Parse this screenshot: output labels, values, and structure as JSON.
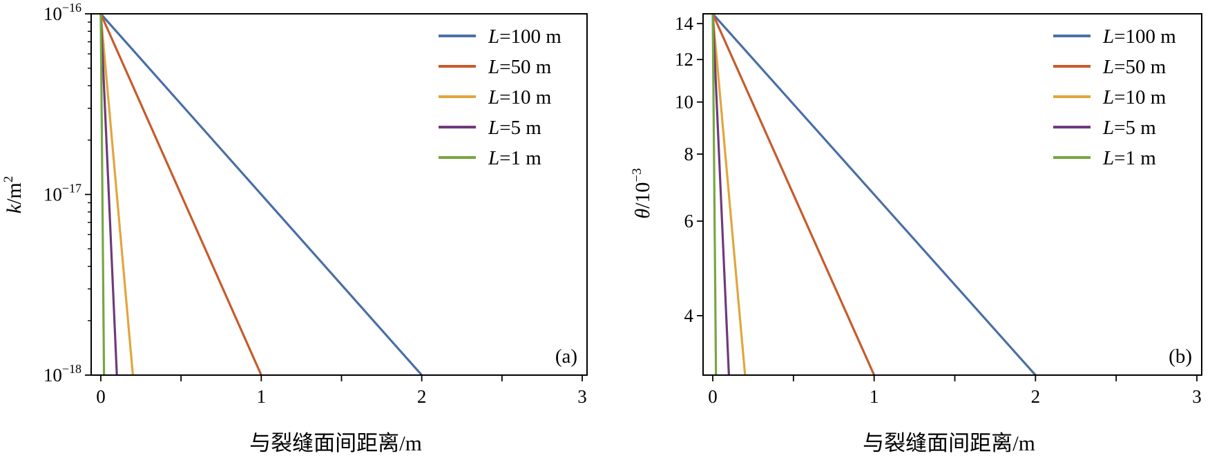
{
  "chart_data": [
    {
      "type": "line",
      "panel_label": "(a)",
      "xlabel": "与裂缝面间距离/m",
      "ylabel_main": "k",
      "ylabel_unit": "/m",
      "ylabel_sup": "2",
      "xlim": [
        -0.06,
        3.03
      ],
      "ylim": [
        1e-18,
        1e-16
      ],
      "y_scale": "log",
      "x_ticks": [
        {
          "value": 0,
          "label": "0"
        },
        {
          "value": 1,
          "label": "1"
        },
        {
          "value": 2,
          "label": "2"
        },
        {
          "value": 3,
          "label": "3"
        }
      ],
      "x_minor_ticks": [
        0.5,
        1.5,
        2.5
      ],
      "y_ticks": [
        {
          "value": 1e-16,
          "base": "10",
          "exp": "−16"
        },
        {
          "value": 1e-17,
          "base": "10",
          "exp": "−17"
        },
        {
          "value": 1e-18,
          "base": "10",
          "exp": "−18"
        }
      ],
      "grid": false,
      "legend_position": "top-right",
      "series": [
        {
          "name_var": "L",
          "name_rest": "=100 m",
          "color": "#4a6fa5",
          "points": [
            [
              0,
              1e-16
            ],
            [
              2.0,
              1e-18
            ]
          ]
        },
        {
          "name_var": "L",
          "name_rest": "=50 m",
          "color": "#c65b2c",
          "points": [
            [
              0,
              1e-16
            ],
            [
              1.0,
              1e-18
            ]
          ]
        },
        {
          "name_var": "L",
          "name_rest": "=10 m",
          "color": "#e2a53d",
          "points": [
            [
              0,
              1e-16
            ],
            [
              0.2,
              1e-18
            ]
          ]
        },
        {
          "name_var": "L",
          "name_rest": "=5 m",
          "color": "#6f3a7a",
          "points": [
            [
              0,
              1e-16
            ],
            [
              0.1,
              1e-18
            ]
          ]
        },
        {
          "name_var": "L",
          "name_rest": "=1 m",
          "color": "#76a644",
          "points": [
            [
              0,
              1e-16
            ],
            [
              0.02,
              1e-18
            ]
          ]
        }
      ]
    },
    {
      "type": "line",
      "panel_label": "(b)",
      "xlabel": "与裂缝面间距离/m",
      "ylabel_main": "θ",
      "ylabel_unit": "/10",
      "ylabel_sup": "−3",
      "xlim": [
        -0.06,
        3.03
      ],
      "ylim": [
        3.1,
        14.6
      ],
      "y_scale": "log",
      "x_ticks": [
        {
          "value": 0,
          "label": "0"
        },
        {
          "value": 1,
          "label": "1"
        },
        {
          "value": 2,
          "label": "2"
        },
        {
          "value": 3,
          "label": "3"
        }
      ],
      "x_minor_ticks": [
        0.5,
        1.5,
        2.5
      ],
      "y_ticks": [
        {
          "value": 14,
          "label": "14"
        },
        {
          "value": 12,
          "label": "12"
        },
        {
          "value": 10,
          "label": "10"
        },
        {
          "value": 8,
          "label": "8"
        },
        {
          "value": 6,
          "label": "6"
        },
        {
          "value": 4,
          "label": "4"
        }
      ],
      "grid": false,
      "legend_position": "top-right",
      "series": [
        {
          "name_var": "L",
          "name_rest": "=100 m",
          "color": "#4a6fa5",
          "points": [
            [
              0,
              14.6
            ],
            [
              2.0,
              3.1
            ]
          ]
        },
        {
          "name_var": "L",
          "name_rest": "=50 m",
          "color": "#c65b2c",
          "points": [
            [
              0,
              14.6
            ],
            [
              1.0,
              3.1
            ]
          ]
        },
        {
          "name_var": "L",
          "name_rest": "=10 m",
          "color": "#e2a53d",
          "points": [
            [
              0,
              14.6
            ],
            [
              0.2,
              3.1
            ]
          ]
        },
        {
          "name_var": "L",
          "name_rest": "=5 m",
          "color": "#6f3a7a",
          "points": [
            [
              0,
              14.6
            ],
            [
              0.1,
              3.1
            ]
          ]
        },
        {
          "name_var": "L",
          "name_rest": "=1 m",
          "color": "#76a644",
          "points": [
            [
              0,
              14.6
            ],
            [
              0.02,
              3.1
            ]
          ]
        }
      ]
    }
  ]
}
